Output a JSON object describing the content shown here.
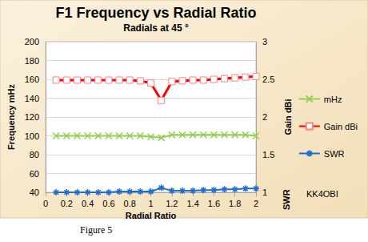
{
  "chart_data": {
    "type": "line",
    "title": "F1 Frequency vs Radial Ratio",
    "subtitle": "Radials at 45 °",
    "x_label": "Radial Ratio",
    "y_label": "Frequency mHz",
    "y2_label": "Gain dBi",
    "annotations": [
      "SWR",
      "KK4OBI",
      "Figure 5"
    ],
    "x": [
      0.1,
      0.2,
      0.3,
      0.4,
      0.5,
      0.6,
      0.7,
      0.8,
      0.9,
      1.0,
      1.1,
      1.2,
      1.3,
      1.4,
      1.5,
      1.6,
      1.7,
      1.8,
      1.9,
      2.0
    ],
    "series": [
      {
        "name": "mHz",
        "color": "#92d050",
        "marker": "x",
        "axis": "y",
        "values": [
          100,
          100,
          100,
          100,
          100,
          100,
          100,
          100,
          100,
          99,
          98,
          101,
          101,
          101,
          101,
          101,
          101,
          101,
          101,
          100
        ]
      },
      {
        "name": "Gain dBi",
        "color": "#ff0000",
        "marker": "square",
        "axis": "y2",
        "values": [
          2.49,
          2.49,
          2.49,
          2.49,
          2.49,
          2.49,
          2.49,
          2.49,
          2.48,
          2.45,
          2.22,
          2.47,
          2.48,
          2.49,
          2.49,
          2.5,
          2.51,
          2.52,
          2.53,
          2.54
        ]
      },
      {
        "name": "SWR",
        "color": "#1f6fd0",
        "marker": "asterisk",
        "axis": "y2",
        "values": [
          1.0,
          1.0,
          1.0,
          1.0,
          1.0,
          1.0,
          1.01,
          1.01,
          1.01,
          1.01,
          1.06,
          1.02,
          1.02,
          1.02,
          1.03,
          1.03,
          1.04,
          1.04,
          1.05,
          1.05
        ]
      }
    ],
    "xlim": [
      0,
      2
    ],
    "xticks": [
      0,
      0.2,
      0.4,
      0.6,
      0.8,
      1,
      1.2,
      1.4,
      1.6,
      1.8,
      2
    ],
    "ylim": [
      40,
      200
    ],
    "yticks": [
      40,
      60,
      80,
      100,
      120,
      140,
      160,
      180,
      200
    ],
    "y2lim": [
      1,
      3
    ],
    "y2ticks": [
      1,
      1.5,
      2,
      2.5,
      3
    ],
    "grid": true,
    "legend": "right"
  }
}
